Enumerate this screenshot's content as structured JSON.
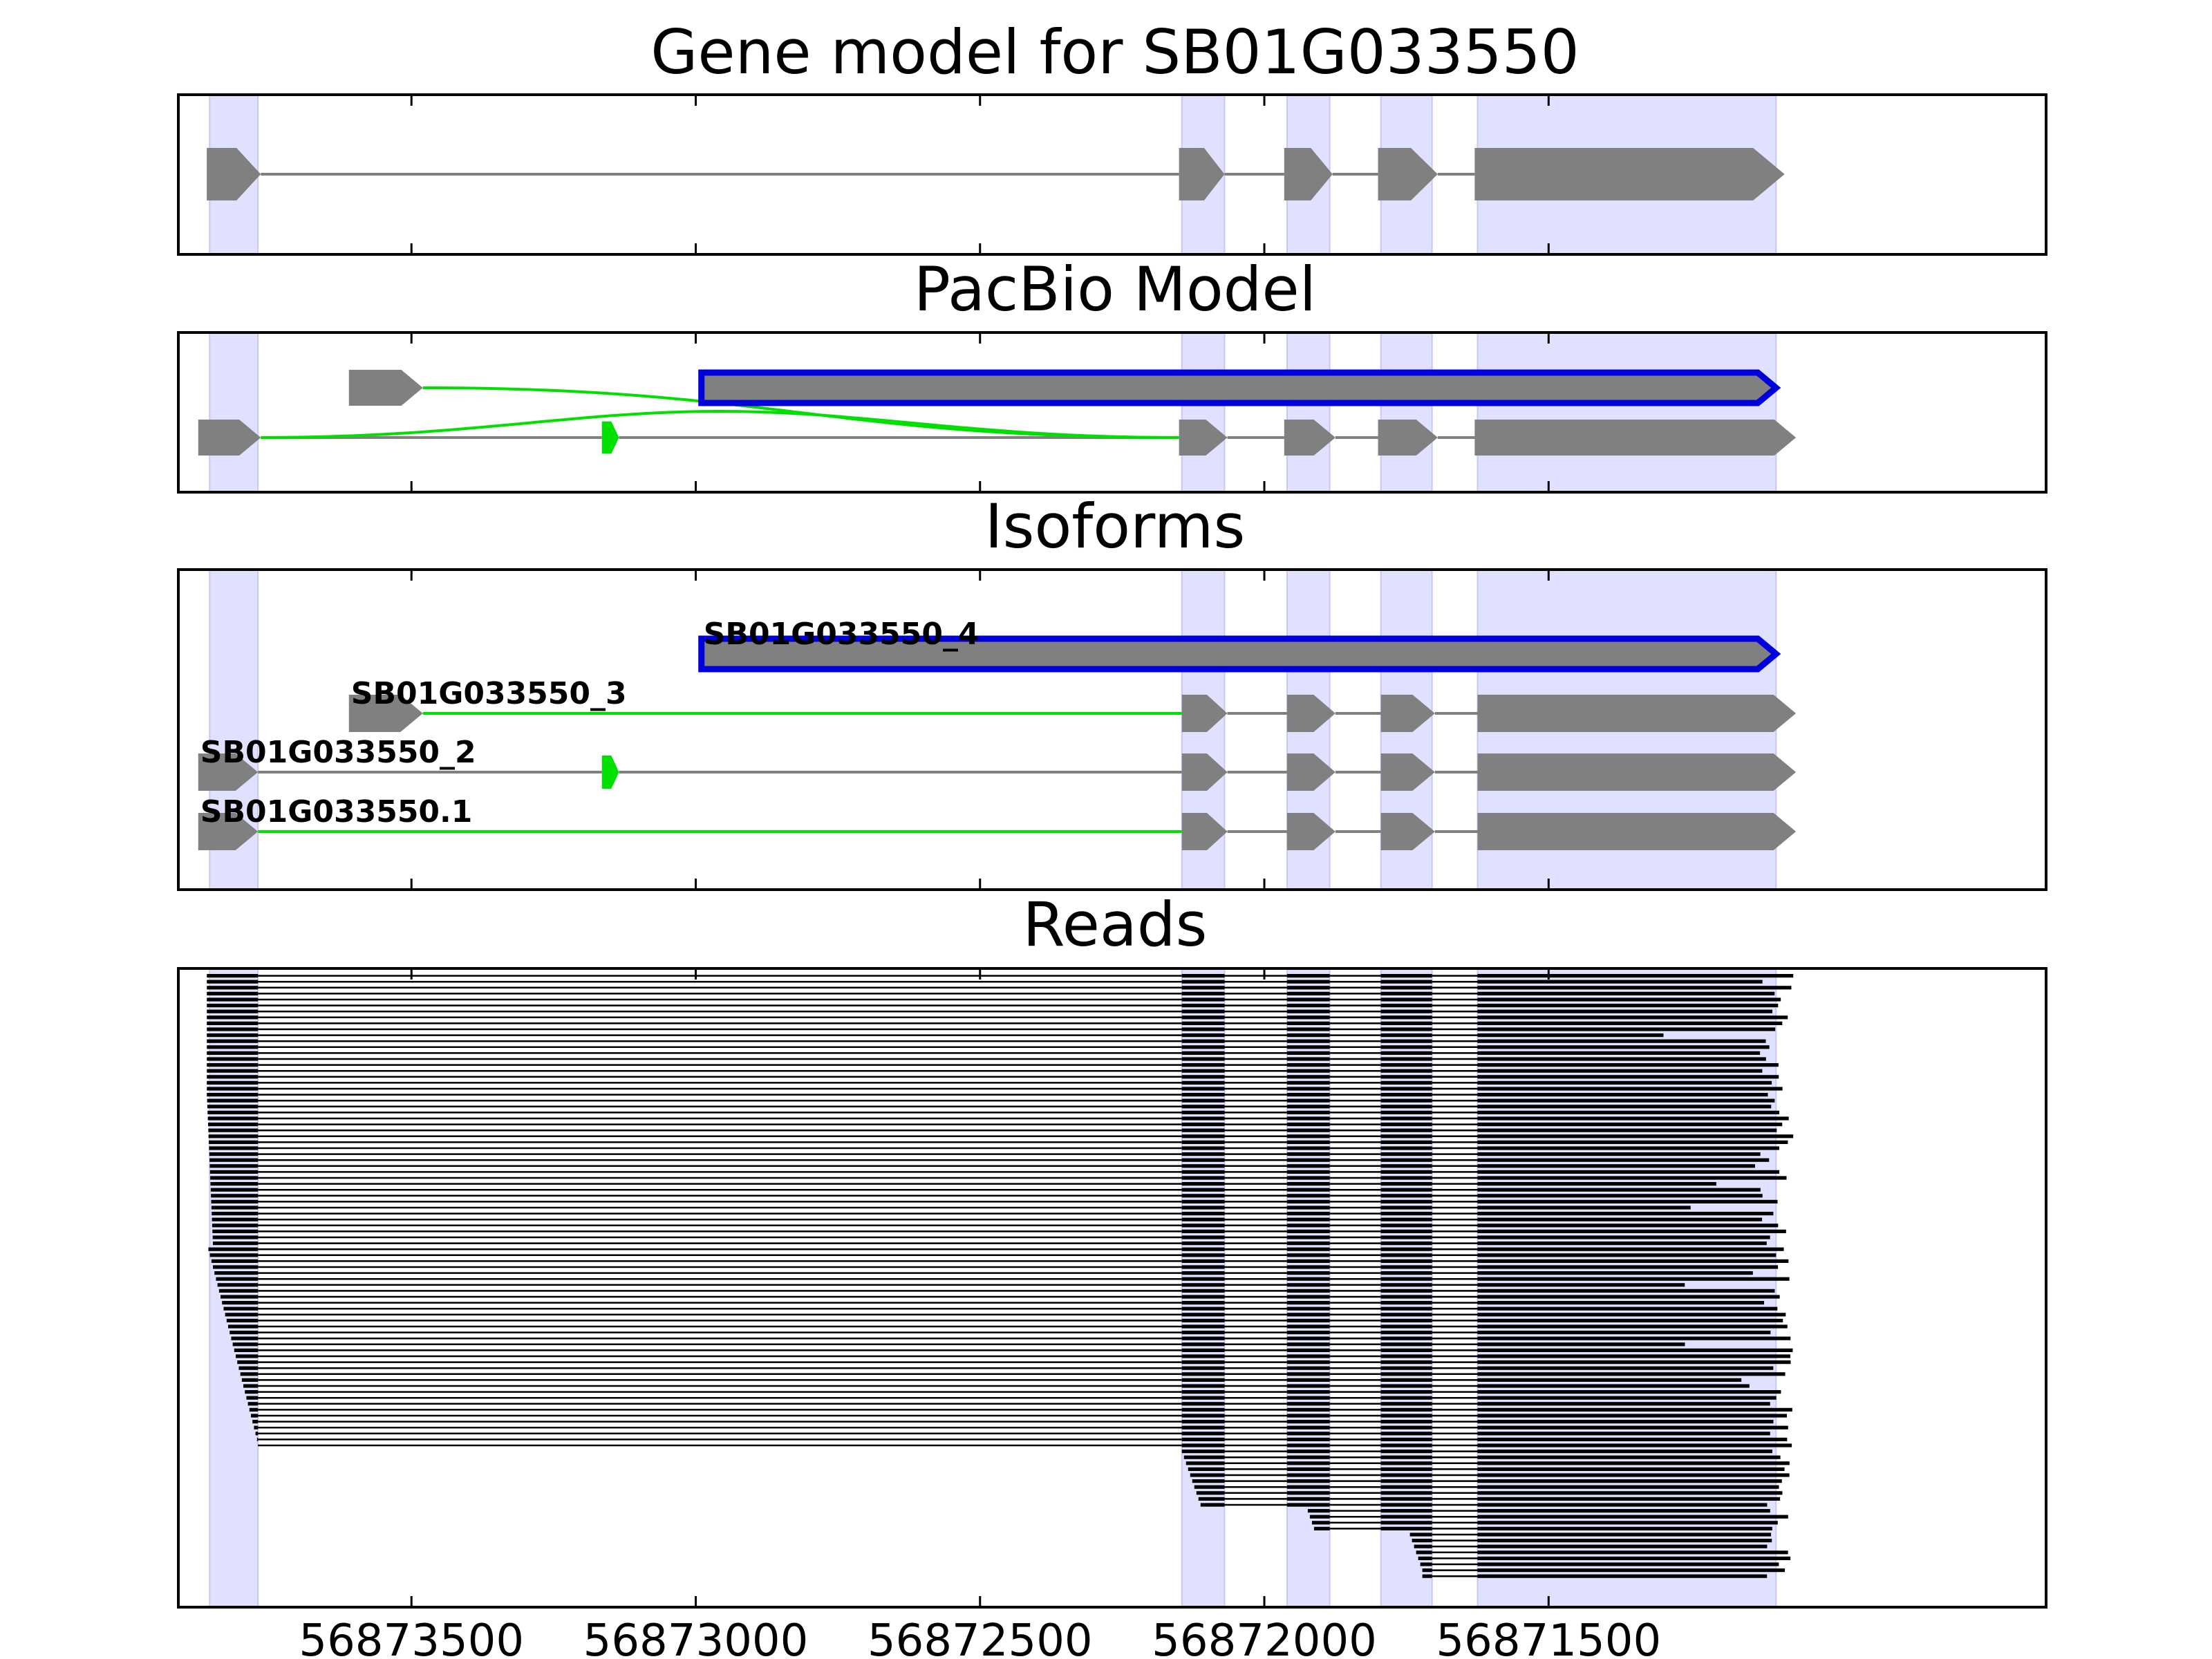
{
  "panels": {
    "gene_model": {
      "title": "Gene model for SB01G033550"
    },
    "pacbio": {
      "title": "PacBio Model"
    },
    "isoforms": {
      "title": "Isoforms"
    },
    "reads": {
      "title": "Reads"
    }
  },
  "chart_data": {
    "type": "gene-track",
    "x_axis": {
      "direction": "descending",
      "range": [
        56873910,
        56870625
      ],
      "ticks": [
        56873500,
        56873000,
        56872500,
        56872000,
        56871500
      ],
      "tick_labels": [
        "56873500",
        "56873000",
        "56872500",
        "56872000",
        "56871500"
      ]
    },
    "colors": {
      "exon": "#808080",
      "intron": "#808080",
      "novel_junction": "#00e000",
      "highlight": "#e0e0ff",
      "selected_outline": "#0000dd",
      "reads": "#000000"
    },
    "exon_regions": [
      [
        56873855,
        56873770
      ],
      [
        56872145,
        56872070
      ],
      [
        56871960,
        56871885
      ],
      [
        56871795,
        56871705
      ],
      [
        56871625,
        56871100
      ]
    ],
    "gene_model": {
      "exons": [
        [
          56873860,
          56873765
        ],
        [
          56872150,
          56872070
        ],
        [
          56871965,
          56871880
        ],
        [
          56871800,
          56871695
        ],
        [
          56871630,
          56871085
        ]
      ]
    },
    "pacbio_model": [
      {
        "exons": [
          [
            56873610,
            56873480
          ]
        ],
        "junctions": [
          [
            56873480,
            56872150
          ]
        ]
      },
      {
        "exons": [
          [
            56872990,
            56871100
          ]
        ],
        "selected": true
      },
      {
        "exons": [
          [
            56873875,
            56873765
          ],
          [
            56873165,
            56873135
          ],
          [
            56872150,
            56872065
          ],
          [
            56871965,
            56871875
          ],
          [
            56871800,
            56871695
          ],
          [
            56871630,
            56871065
          ]
        ],
        "junctions": [
          [
            56873765,
            56872150
          ]
        ]
      }
    ],
    "isoforms": [
      {
        "name": "SB01G033550_4",
        "exons": [
          [
            56872990,
            56871100
          ]
        ],
        "selected": true
      },
      {
        "name": "SB01G033550_3",
        "exons": [
          [
            56873610,
            56873480
          ],
          [
            56872145,
            56872065
          ],
          [
            56871960,
            56871875
          ],
          [
            56871795,
            56871700
          ],
          [
            56871625,
            56871065
          ]
        ],
        "junctions": [
          [
            56873480,
            56872145
          ]
        ]
      },
      {
        "name": "SB01G033550_2",
        "exons": [
          [
            56873875,
            56873770
          ],
          [
            56873165,
            56873135
          ],
          [
            56872145,
            56872065
          ],
          [
            56871960,
            56871875
          ],
          [
            56871795,
            56871700
          ],
          [
            56871625,
            56871065
          ]
        ],
        "junctions": []
      },
      {
        "name": "SB01G033550.1",
        "exons": [
          [
            56873875,
            56873770
          ],
          [
            56872145,
            56872065
          ],
          [
            56871960,
            56871875
          ],
          [
            56871795,
            56871700
          ],
          [
            56871625,
            56871065
          ]
        ],
        "junctions": [
          [
            56873770,
            56872145
          ]
        ]
      }
    ],
    "reads": {
      "spliced_read_count": 80,
      "partial_read_count": 22,
      "read_3prime_end_range": [
        56871300,
        56871065
      ]
    }
  }
}
